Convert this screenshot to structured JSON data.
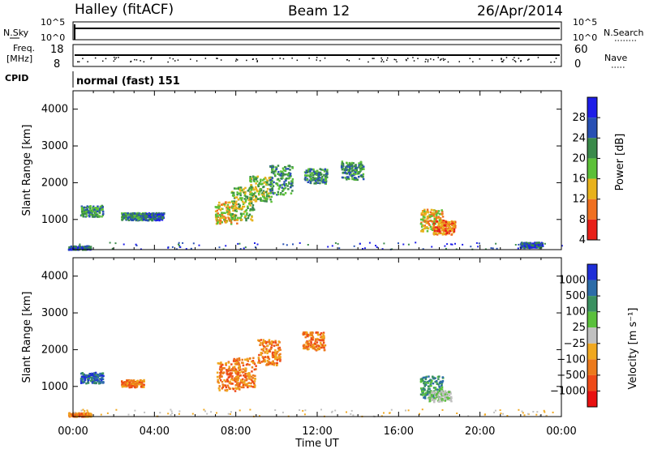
{
  "header": {
    "station": "Halley (fitACF)",
    "beam": "Beam 12",
    "date": "26/Apr/2014"
  },
  "top_panels": {
    "nsky_label": "N.Sky",
    "nsky_ticks": [
      "10^5",
      "10^0"
    ],
    "nsearch_label": "N.Search",
    "nsearch_ticks": [
      "10^5",
      "10^0"
    ],
    "freq_label_1": "Freq.",
    "freq_label_2": "[MHz]",
    "freq_ticks": [
      "18",
      "8"
    ],
    "nave_label": "Nave",
    "nave_ticks": [
      "60",
      "0"
    ],
    "cpid_label": "CPID",
    "cpid_text": "normal (fast) 151"
  },
  "chart_data": [
    {
      "type": "heatmap",
      "name": "power",
      "ylabel": "Slant Range [km]",
      "ylim": [
        180,
        4500
      ],
      "yticks": [
        1000,
        2000,
        3000,
        4000
      ],
      "xlim": [
        0,
        24
      ],
      "colorbar_label": "Power [dB]",
      "colorbar_ticks": [
        "28",
        "24",
        "20",
        "16",
        "12",
        "8",
        "4"
      ],
      "colorbar_colors": [
        "#1e1ee8",
        "#2850b4",
        "#3a8a4a",
        "#5cc038",
        "#e8b21c",
        "#f07020",
        "#e82018"
      ],
      "regions": [
        {
          "t": 0.3,
          "r0": 200,
          "r1": 300,
          "level": 1
        },
        {
          "t": 0.9,
          "r0": 1100,
          "r1": 1400,
          "level": 2
        },
        {
          "t": 2.9,
          "r0": 1000,
          "r1": 1200,
          "level": 2
        },
        {
          "t": 3.9,
          "r0": 1000,
          "r1": 1200,
          "level": 1
        },
        {
          "t": 7.5,
          "r0": 900,
          "r1": 1500,
          "level": 4
        },
        {
          "t": 8.3,
          "r0": 1000,
          "r1": 1900,
          "level": 3
        },
        {
          "t": 9.2,
          "r0": 1500,
          "r1": 2200,
          "level": 3
        },
        {
          "t": 10.2,
          "r0": 1700,
          "r1": 2500,
          "level": 2
        },
        {
          "t": 11.9,
          "r0": 2000,
          "r1": 2400,
          "level": 2
        },
        {
          "t": 13.7,
          "r0": 2100,
          "r1": 2600,
          "level": 2
        },
        {
          "t": 17.6,
          "r0": 700,
          "r1": 1300,
          "level": 4
        },
        {
          "t": 18.2,
          "r0": 600,
          "r1": 1000,
          "level": 5
        },
        {
          "t": 22.5,
          "r0": 250,
          "r1": 400,
          "level": 1
        }
      ]
    },
    {
      "type": "heatmap",
      "name": "velocity",
      "ylabel": "Slant Range [km]",
      "ylim": [
        180,
        4500
      ],
      "yticks": [
        1000,
        2000,
        3000,
        4000
      ],
      "xlim": [
        0,
        24
      ],
      "xticks": [
        "00:00",
        "04:00",
        "08:00",
        "12:00",
        "16:00",
        "20:00",
        "00:00"
      ],
      "xlabel": "Time UT",
      "colorbar_label": "Velocity [m s⁻¹]",
      "colorbar_ticks": [
        "1000",
        "500",
        "100",
        "25",
        "−25",
        "−100",
        "−500",
        "−1000"
      ],
      "colorbar_colors": [
        "#1e2ed8",
        "#2c6ca8",
        "#3a9060",
        "#5ac03c",
        "#c0c0c0",
        "#f0a820",
        "#ec7a1c",
        "#ee4a18",
        "#e81010"
      ],
      "regions": [
        {
          "t": 0.3,
          "r0": 200,
          "r1": 300,
          "level": "orange"
        },
        {
          "t": 0.9,
          "r0": 1100,
          "r1": 1400,
          "level": "blue"
        },
        {
          "t": 2.9,
          "r0": 1000,
          "r1": 1200,
          "level": "orange"
        },
        {
          "t": 7.6,
          "r0": 900,
          "r1": 1700,
          "level": "orange"
        },
        {
          "t": 8.4,
          "r0": 1000,
          "r1": 1800,
          "level": "orange"
        },
        {
          "t": 9.6,
          "r0": 1600,
          "r1": 2300,
          "level": "orange"
        },
        {
          "t": 11.8,
          "r0": 2000,
          "r1": 2500,
          "level": "orange"
        },
        {
          "t": 17.6,
          "r0": 700,
          "r1": 1300,
          "level": "green"
        },
        {
          "t": 18.0,
          "r0": 600,
          "r1": 900,
          "level": "grey"
        }
      ]
    }
  ]
}
